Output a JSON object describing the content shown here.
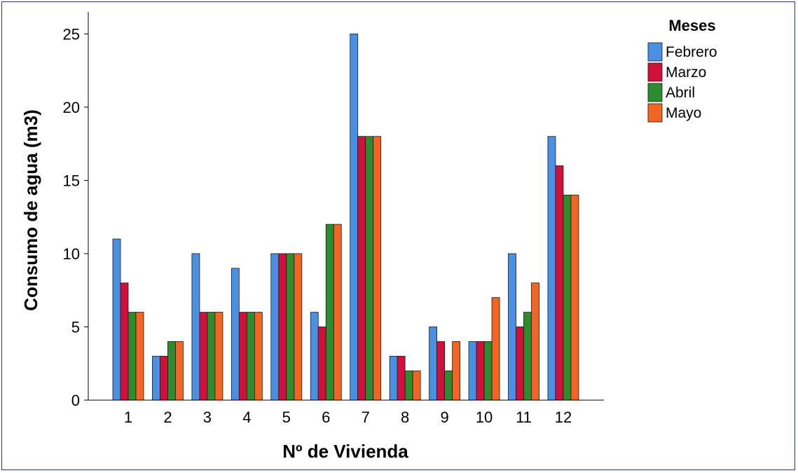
{
  "chart_data": {
    "type": "bar",
    "xlabel": "Nº de Vivienda",
    "ylabel": "Consumo de agua (m3)",
    "categories": [
      "1",
      "2",
      "3",
      "4",
      "5",
      "6",
      "7",
      "8",
      "9",
      "10",
      "11",
      "12"
    ],
    "ylim": [
      0,
      26.5
    ],
    "yticks": [
      0,
      5,
      10,
      15,
      20,
      25
    ],
    "grid": false,
    "legend": {
      "title": "Meses",
      "placement": "top-right"
    },
    "series": [
      {
        "name": "Febrero",
        "color": "#4a90e2",
        "values": [
          11,
          3,
          10,
          9,
          10,
          6,
          25,
          3,
          5,
          4,
          10,
          18
        ]
      },
      {
        "name": "Marzo",
        "color": "#d0103a",
        "values": [
          8,
          3,
          6,
          6,
          10,
          5,
          18,
          3,
          4,
          4,
          5,
          16
        ]
      },
      {
        "name": "Abril",
        "color": "#2e8b2e",
        "values": [
          6,
          4,
          6,
          6,
          10,
          12,
          18,
          2,
          2,
          4,
          6,
          14
        ]
      },
      {
        "name": "Mayo",
        "color": "#f26522",
        "values": [
          6,
          4,
          6,
          6,
          10,
          12,
          18,
          2,
          4,
          7,
          8,
          14
        ]
      }
    ]
  }
}
